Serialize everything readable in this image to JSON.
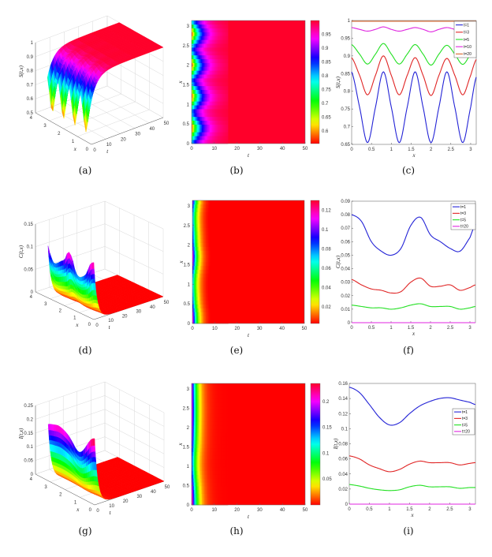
{
  "figure": {
    "captions": [
      "(a)",
      "(b)",
      "(c)",
      "(d)",
      "(e)",
      "(f)",
      "(g)",
      "(h)",
      "(i)"
    ]
  },
  "chart_data": [
    {
      "panel": "a",
      "type": "surface",
      "xlabel": "x",
      "ylabel": "t",
      "zlabel": "S(t,x)",
      "xlim": [
        0,
        4
      ],
      "ylim": [
        0,
        50
      ],
      "zlim": [
        0.5,
        1
      ],
      "xticks": [
        0,
        1,
        2,
        3,
        4
      ],
      "yticks": [
        0,
        10,
        20,
        30,
        40,
        50
      ],
      "zticks": [
        0.5,
        0.6,
        0.7,
        0.8,
        0.9,
        1
      ],
      "colormap": "hsv",
      "grid": true
    },
    {
      "panel": "b",
      "type": "heatmap",
      "xlabel": "t",
      "ylabel": "x",
      "xlim": [
        0,
        50
      ],
      "ylim": [
        0,
        3.14
      ],
      "xticks": [
        0,
        10,
        20,
        30,
        40,
        50
      ],
      "yticks": [
        0,
        0.5,
        1,
        1.5,
        2,
        2.5,
        3
      ],
      "colorbar": {
        "range": [
          0.555,
          1.0
        ],
        "ticks": [
          0.6,
          0.65,
          0.7,
          0.75,
          0.8,
          0.85,
          0.9,
          0.95
        ]
      },
      "colormap": "hsv"
    },
    {
      "panel": "c",
      "type": "line",
      "xlabel": "x",
      "ylabel": "S(t,x)",
      "xlim": [
        0,
        3.14
      ],
      "ylim": [
        0.65,
        1
      ],
      "xticks": [
        0,
        0.5,
        1,
        1.5,
        2,
        2.5,
        3
      ],
      "yticks": [
        0.65,
        0.7,
        0.75,
        0.8,
        0.85,
        0.9,
        0.95,
        1
      ],
      "legend": "top-right",
      "x": [
        0,
        0.2,
        0.4,
        0.6,
        0.8,
        1.0,
        1.2,
        1.4,
        1.6,
        1.8,
        2.0,
        2.2,
        2.4,
        2.6,
        2.8,
        3.0,
        3.14
      ],
      "series": [
        {
          "name": "t=1",
          "color": "#2323d6",
          "values": [
            0.855,
            0.755,
            0.655,
            0.755,
            0.855,
            0.755,
            0.655,
            0.755,
            0.855,
            0.755,
            0.655,
            0.755,
            0.855,
            0.755,
            0.655,
            0.755,
            0.84
          ]
        },
        {
          "name": "t=3",
          "color": "#e02525",
          "values": [
            0.895,
            0.845,
            0.79,
            0.845,
            0.9,
            0.845,
            0.79,
            0.845,
            0.895,
            0.845,
            0.788,
            0.845,
            0.893,
            0.845,
            0.79,
            0.845,
            0.89
          ]
        },
        {
          "name": "t=5",
          "color": "#22e022",
          "values": [
            0.932,
            0.905,
            0.877,
            0.905,
            0.935,
            0.905,
            0.877,
            0.905,
            0.932,
            0.905,
            0.874,
            0.905,
            0.93,
            0.905,
            0.876,
            0.905,
            0.928
          ]
        },
        {
          "name": "t=10",
          "color": "#e025e0",
          "values": [
            0.98,
            0.975,
            0.97,
            0.975,
            0.982,
            0.975,
            0.97,
            0.975,
            0.98,
            0.975,
            0.968,
            0.975,
            0.98,
            0.975,
            0.97,
            0.975,
            0.979
          ]
        },
        {
          "name": "t=20",
          "color": "#d8662c",
          "values": [
            0.998,
            0.998,
            0.998,
            0.998,
            0.998,
            0.998,
            0.998,
            0.998,
            0.998,
            0.998,
            0.998,
            0.998,
            0.998,
            0.998,
            0.998,
            0.998,
            0.998
          ]
        }
      ]
    },
    {
      "panel": "d",
      "type": "surface",
      "xlabel": "x",
      "ylabel": "t",
      "zlabel": "C(t,x)",
      "xlim": [
        0,
        4
      ],
      "ylim": [
        0,
        50
      ],
      "zlim": [
        0,
        0.15
      ],
      "xticks": [
        0,
        1,
        2,
        3,
        4
      ],
      "yticks": [
        0,
        10,
        20,
        30,
        40,
        50
      ],
      "zticks": [
        0,
        0.05,
        0.1,
        0.15
      ],
      "colormap": "hsv",
      "grid": true
    },
    {
      "panel": "e",
      "type": "heatmap",
      "xlabel": "t",
      "ylabel": "x",
      "xlim": [
        0,
        50
      ],
      "ylim": [
        0,
        3.14
      ],
      "xticks": [
        0,
        10,
        20,
        30,
        40,
        50
      ],
      "yticks": [
        0,
        0.5,
        1,
        1.5,
        2,
        2.5,
        3
      ],
      "colorbar": {
        "range": [
          0.003,
          0.13
        ],
        "ticks": [
          0.02,
          0.04,
          0.06,
          0.08,
          0.1,
          0.12
        ]
      },
      "colormap": "hsv"
    },
    {
      "panel": "f",
      "type": "line",
      "xlabel": "x",
      "ylabel": "C(t,x)",
      "xlim": [
        0,
        3.14
      ],
      "ylim": [
        0,
        0.09
      ],
      "xticks": [
        0,
        0.5,
        1,
        1.5,
        2,
        2.5,
        3
      ],
      "yticks": [
        0,
        0.01,
        0.02,
        0.03,
        0.04,
        0.05,
        0.06,
        0.07,
        0.08,
        0.09
      ],
      "legend": "top-right",
      "x": [
        0,
        0.25,
        0.5,
        0.75,
        1,
        1.25,
        1.5,
        1.75,
        2,
        2.25,
        2.5,
        2.75,
        3,
        3.14
      ],
      "series": [
        {
          "name": "t=1",
          "color": "#2323d6",
          "values": [
            0.08,
            0.075,
            0.06,
            0.053,
            0.05,
            0.055,
            0.072,
            0.078,
            0.065,
            0.06,
            0.055,
            0.053,
            0.063,
            0.073
          ]
        },
        {
          "name": "t=3",
          "color": "#e02525",
          "values": [
            0.032,
            0.028,
            0.025,
            0.024,
            0.022,
            0.023,
            0.03,
            0.033,
            0.027,
            0.027,
            0.028,
            0.024,
            0.026,
            0.028
          ]
        },
        {
          "name": "t=5",
          "color": "#22e022",
          "values": [
            0.013,
            0.012,
            0.011,
            0.011,
            0.01,
            0.011,
            0.013,
            0.014,
            0.012,
            0.012,
            0.012,
            0.01,
            0.011,
            0.012
          ]
        },
        {
          "name": "t=20",
          "color": "#e025e0",
          "values": [
            0,
            0,
            0,
            0,
            0,
            0,
            0,
            0,
            0,
            0,
            0,
            0,
            0,
            0
          ]
        }
      ]
    },
    {
      "panel": "g",
      "type": "surface",
      "xlabel": "x",
      "ylabel": "t",
      "zlabel": "I(t,x)",
      "xlim": [
        0,
        4
      ],
      "ylim": [
        0,
        50
      ],
      "zlim": [
        0,
        0.25
      ],
      "xticks": [
        0,
        1,
        2,
        3,
        4
      ],
      "yticks": [
        0,
        10,
        20,
        30,
        40,
        50
      ],
      "zticks": [
        0,
        0.05,
        0.1,
        0.15,
        0.2,
        0.25
      ],
      "colormap": "hsv",
      "grid": true
    },
    {
      "panel": "h",
      "type": "heatmap",
      "xlabel": "t",
      "ylabel": "x",
      "xlim": [
        0,
        50
      ],
      "ylim": [
        0,
        3.14
      ],
      "xticks": [
        0,
        10,
        20,
        30,
        40,
        50
      ],
      "yticks": [
        0,
        0.5,
        1,
        1.5,
        2,
        2.5,
        3
      ],
      "colorbar": {
        "range": [
          0.0,
          0.235
        ],
        "ticks": [
          0.05,
          0.1,
          0.15,
          0.2
        ]
      },
      "colormap": "hsv"
    },
    {
      "panel": "i",
      "type": "line",
      "xlabel": "x",
      "ylabel": "I(t,x)",
      "xlim": [
        0,
        3.14
      ],
      "ylim": [
        0,
        0.16
      ],
      "xticks": [
        0,
        0.5,
        1,
        1.5,
        2,
        2.5,
        3
      ],
      "yticks": [
        0,
        0.02,
        0.04,
        0.06,
        0.08,
        0.1,
        0.12,
        0.14,
        0.16
      ],
      "legend": "right",
      "x": [
        0,
        0.25,
        0.5,
        0.75,
        1,
        1.25,
        1.5,
        1.75,
        2,
        2.25,
        2.5,
        2.75,
        3,
        3.14
      ],
      "series": [
        {
          "name": "t=1",
          "color": "#2323d6",
          "values": [
            0.155,
            0.148,
            0.132,
            0.115,
            0.105,
            0.108,
            0.12,
            0.13,
            0.136,
            0.14,
            0.141,
            0.138,
            0.135,
            0.132
          ]
        },
        {
          "name": "t=3",
          "color": "#e02525",
          "values": [
            0.064,
            0.06,
            0.052,
            0.047,
            0.043,
            0.046,
            0.053,
            0.057,
            0.055,
            0.055,
            0.055,
            0.052,
            0.054,
            0.055
          ]
        },
        {
          "name": "t=5",
          "color": "#22e022",
          "values": [
            0.026,
            0.024,
            0.021,
            0.019,
            0.018,
            0.019,
            0.023,
            0.025,
            0.023,
            0.023,
            0.023,
            0.021,
            0.022,
            0.022
          ]
        },
        {
          "name": "t=20",
          "color": "#e025e0",
          "values": [
            0,
            0,
            0,
            0,
            0,
            0,
            0,
            0,
            0,
            0,
            0,
            0,
            0,
            0
          ]
        }
      ]
    }
  ]
}
